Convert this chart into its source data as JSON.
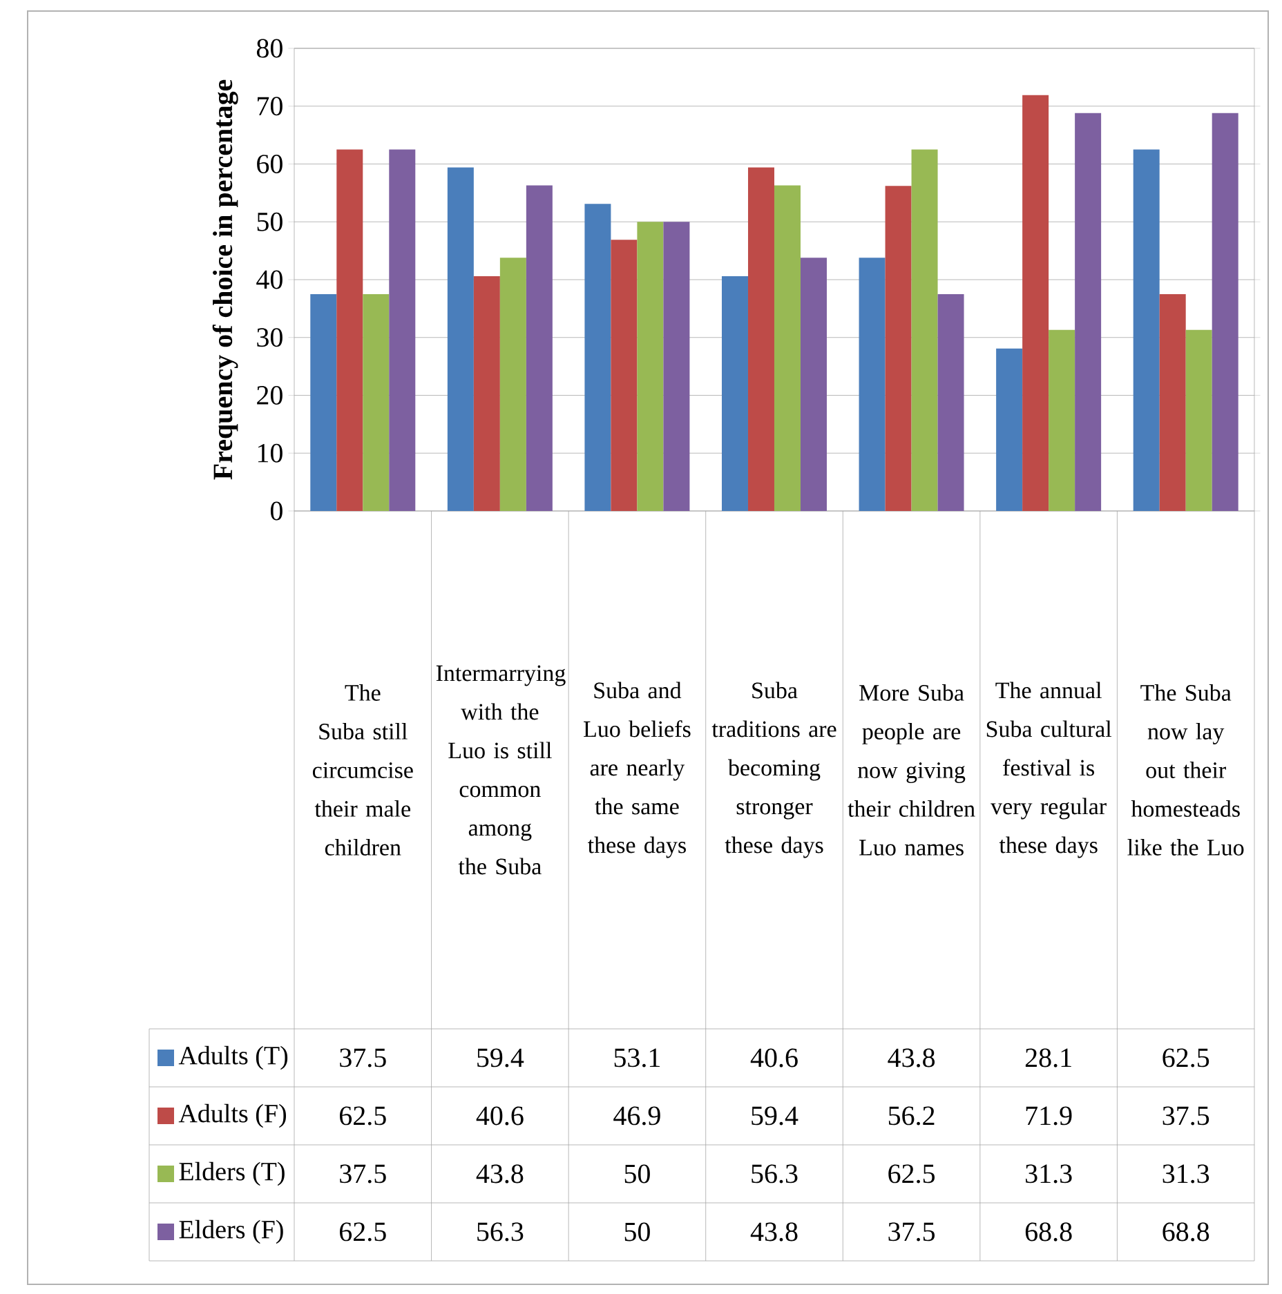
{
  "chart_data": {
    "type": "bar",
    "ylabel": "Frequency of choice in percentage",
    "categories": [
      "The Suba still circumcise their male children",
      "Intermarrying with the Luo is still common among the Suba",
      "Suba and Luo beliefs are nearly the same these days",
      "Suba traditions are becoming stronger these days",
      "More Suba people are now giving their children Luo names",
      "The annual Suba cultural festival is very regular these days",
      "The Suba now lay out their homesteads like the Luo"
    ],
    "series": [
      {
        "name": "Adults (T)",
        "color": "#4a7ebb",
        "values": [
          37.5,
          59.4,
          53.1,
          40.6,
          43.8,
          28.1,
          62.5
        ]
      },
      {
        "name": "Adults (F)",
        "color": "#be4b48",
        "values": [
          62.5,
          40.6,
          46.9,
          59.4,
          56.2,
          71.9,
          37.5
        ]
      },
      {
        "name": "Elders (T)",
        "color": "#98b954",
        "values": [
          37.5,
          43.8,
          50,
          56.3,
          62.5,
          31.3,
          31.3
        ]
      },
      {
        "name": "Elders (F)",
        "color": "#7d60a0",
        "values": [
          62.5,
          56.3,
          50,
          43.8,
          37.5,
          68.8,
          68.8
        ]
      }
    ],
    "ylim": [
      0,
      80
    ],
    "yticks": [
      0,
      10,
      20,
      30,
      40,
      50,
      60,
      70,
      80
    ],
    "grid": "y",
    "legend": "left",
    "data_labels": true
  }
}
